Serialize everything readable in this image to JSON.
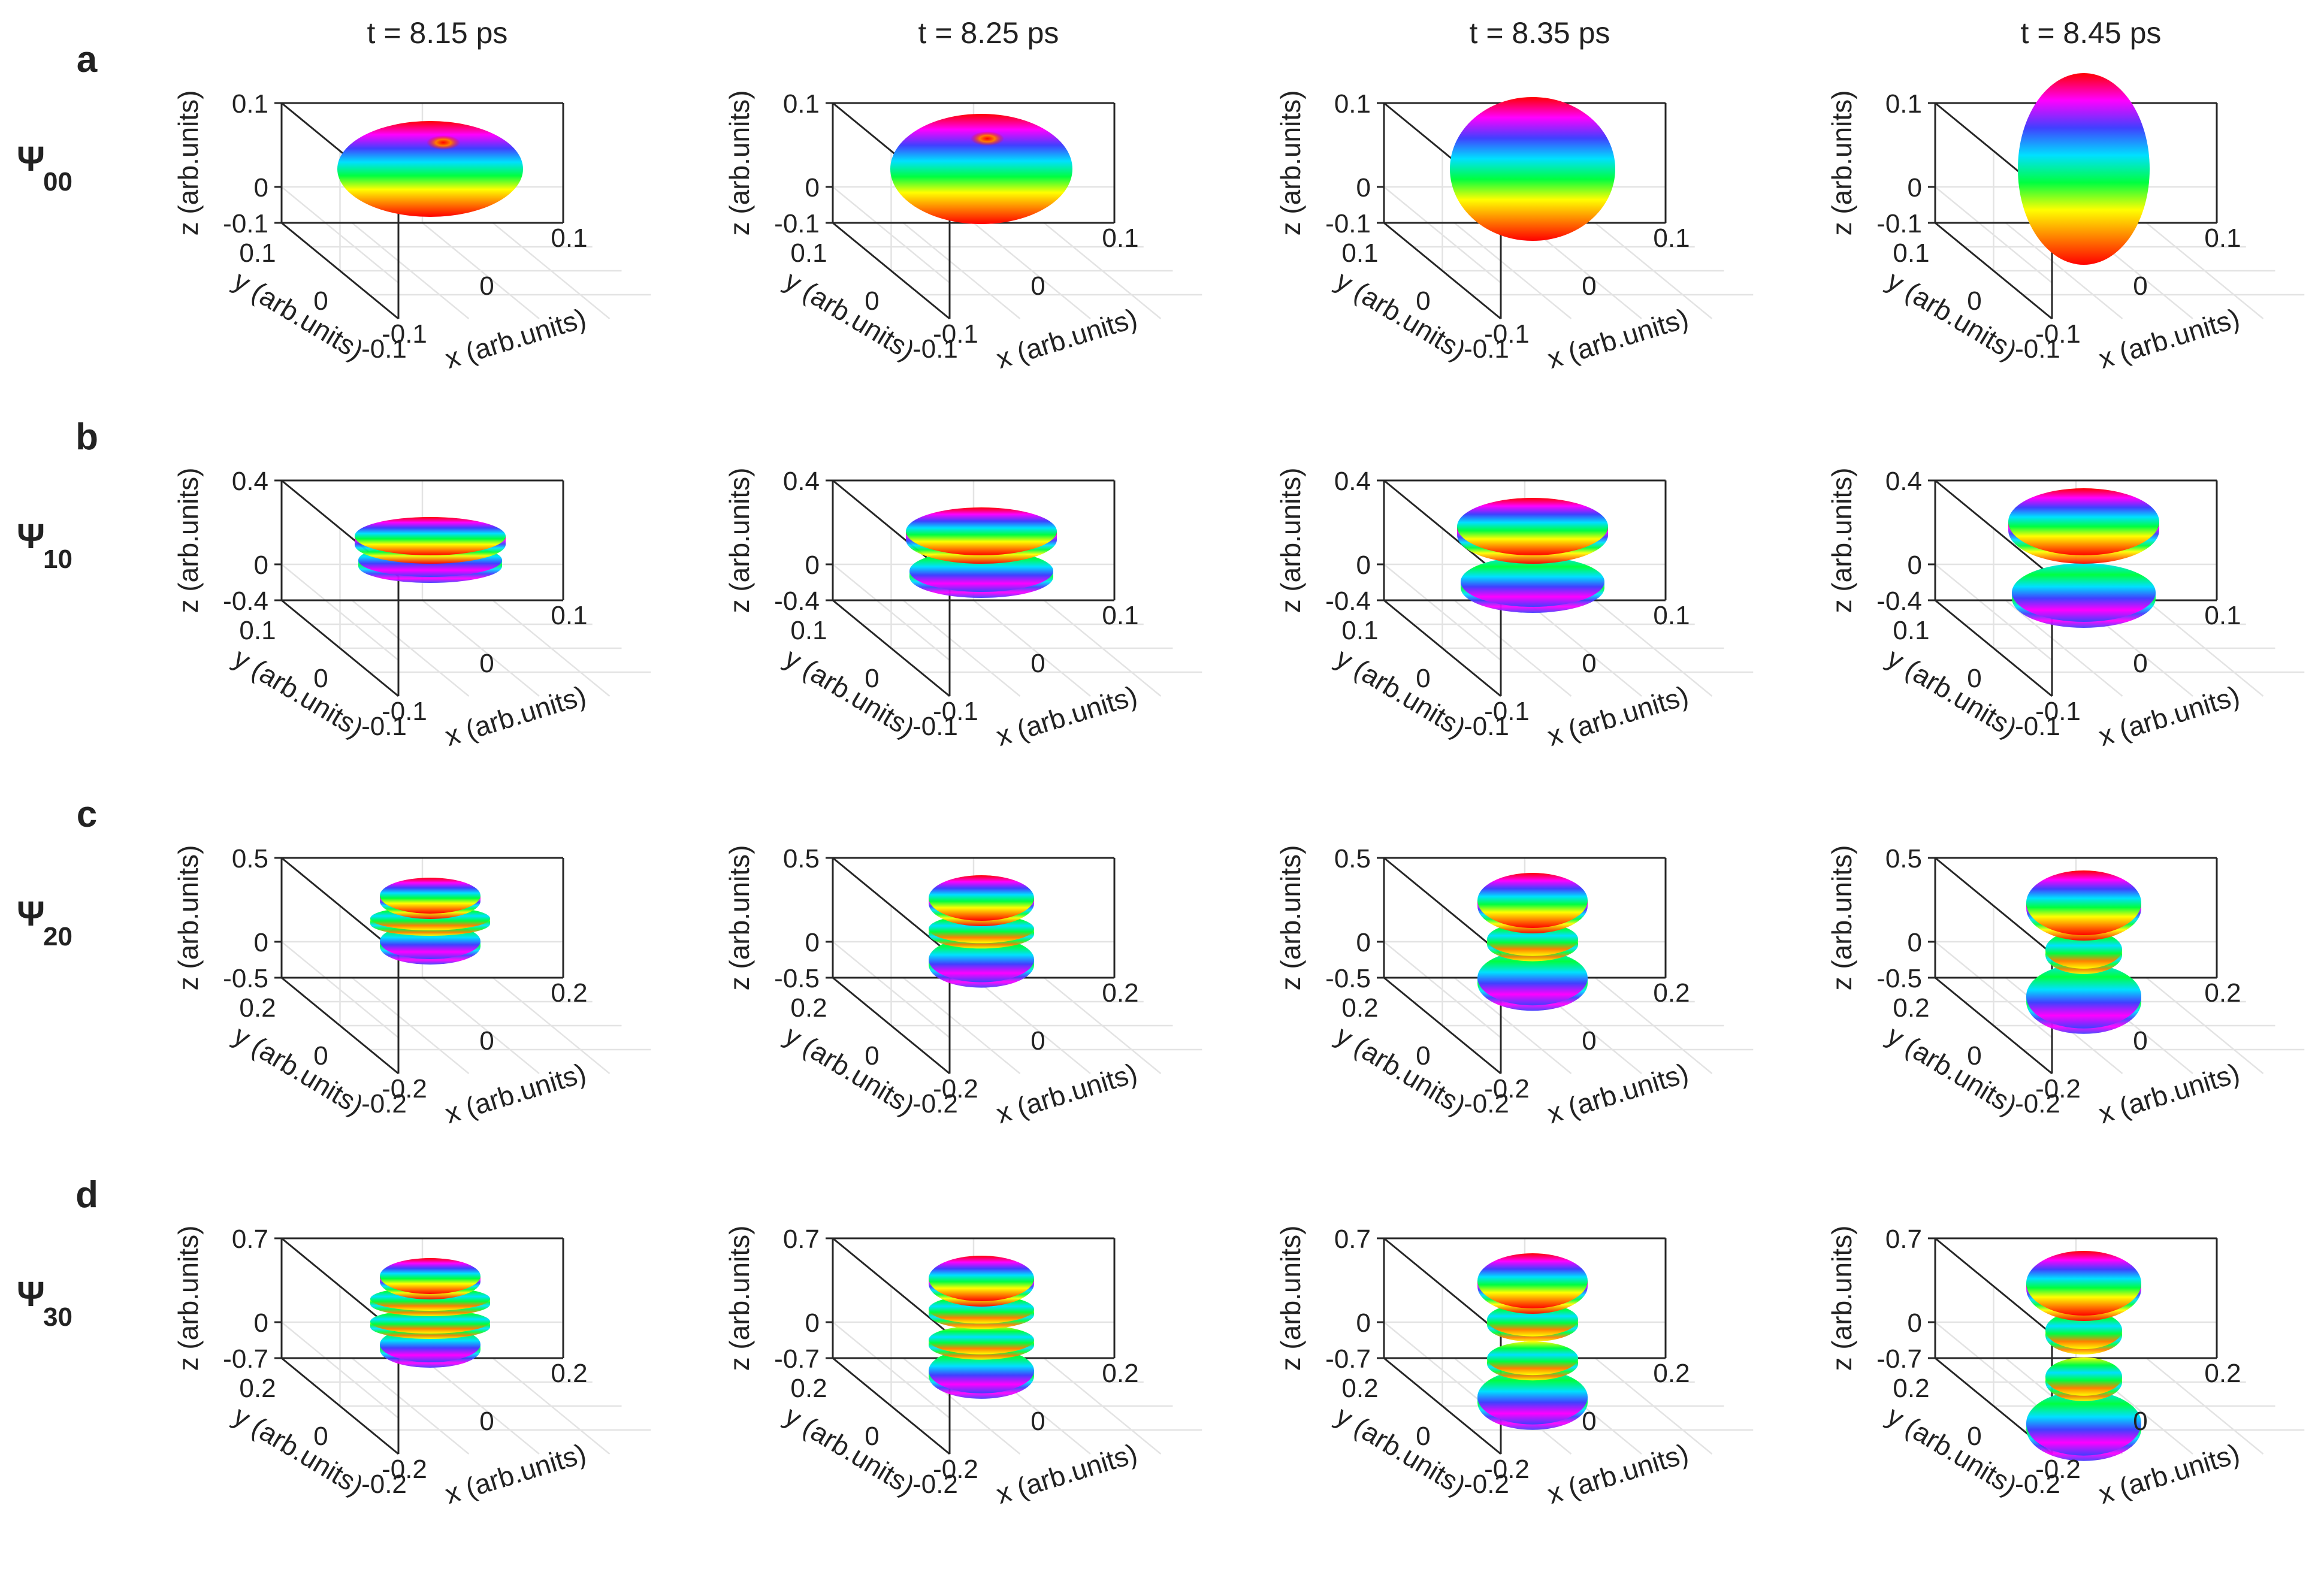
{
  "figure": {
    "columns": [
      {
        "time_label": "t = 8.15 ps"
      },
      {
        "time_label": "t = 8.25 ps"
      },
      {
        "time_label": "t = 8.35 ps"
      },
      {
        "time_label": "t = 8.45 ps"
      }
    ],
    "rows": [
      {
        "panel_letter": "a",
        "state_symbol": "Ψ",
        "state_subscript": "00",
        "z_ticks": [
          "0.1",
          "0",
          "-0.1"
        ],
        "y_ticks": [
          "0.1",
          "0",
          "-0.1"
        ],
        "x_ticks": [
          "-0.1",
          "0",
          "0.1"
        ],
        "lobe_count": 1
      },
      {
        "panel_letter": "b",
        "state_symbol": "Ψ",
        "state_subscript": "10",
        "z_ticks": [
          "0.4",
          "0",
          "-0.4"
        ],
        "y_ticks": [
          "0.1",
          "0",
          "-0.1"
        ],
        "x_ticks": [
          "-0.1",
          "0",
          "0.1"
        ],
        "lobe_count": 2
      },
      {
        "panel_letter": "c",
        "state_symbol": "Ψ",
        "state_subscript": "20",
        "z_ticks": [
          "0.5",
          "0",
          "-0.5"
        ],
        "y_ticks": [
          "0.2",
          "0",
          "-0.2"
        ],
        "x_ticks": [
          "-0.2",
          "0",
          "0.2"
        ],
        "lobe_count": 3
      },
      {
        "panel_letter": "d",
        "state_symbol": "Ψ",
        "state_subscript": "30",
        "z_ticks": [
          "0.7",
          "0",
          "-0.7"
        ],
        "y_ticks": [
          "0.2",
          "0",
          "-0.2"
        ],
        "x_ticks": [
          "-0.2",
          "0",
          "0.2"
        ],
        "lobe_count": 4
      }
    ],
    "axes": {
      "x_label": "x (arb.units)",
      "y_label": "y (arb.units)",
      "z_label": "z (arb.units)"
    },
    "colormap": [
      "#ff0000",
      "#ff00ff",
      "#4040ff",
      "#00e0ff",
      "#00ff40",
      "#ffff00",
      "#ff8000",
      "#ff0000"
    ]
  }
}
